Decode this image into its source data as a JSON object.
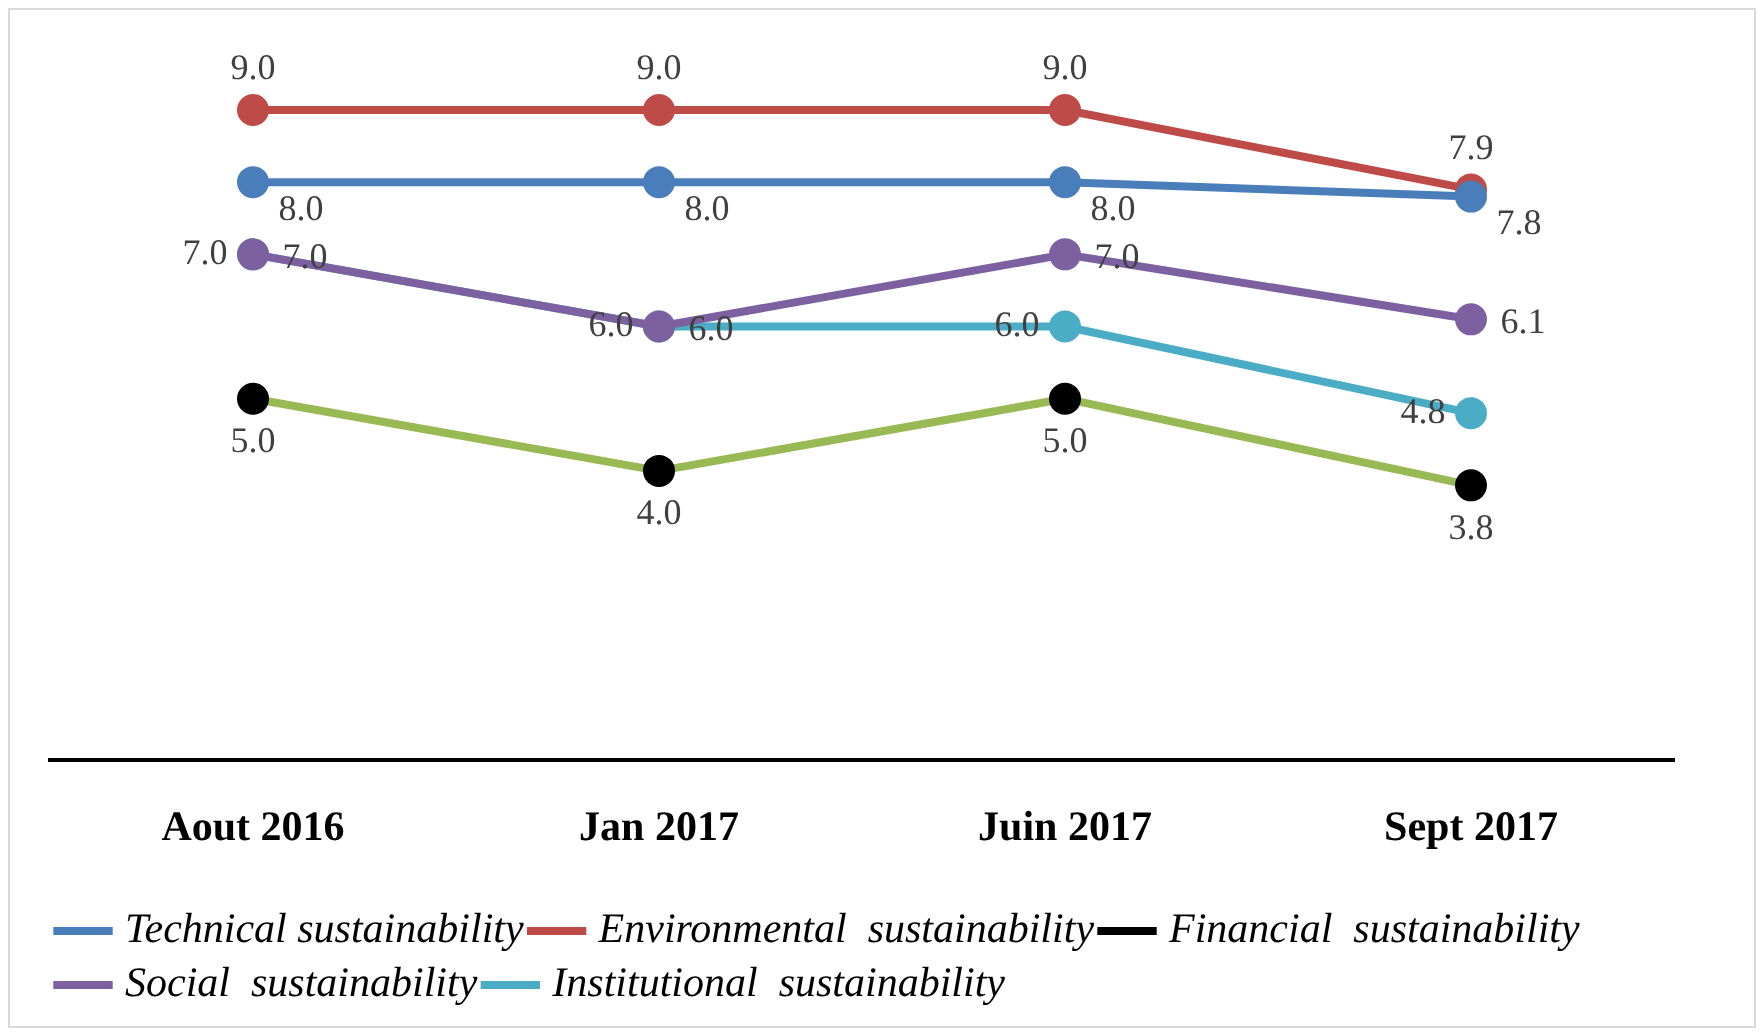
{
  "chart_data": {
    "type": "line",
    "categories": [
      "Aout 2016",
      "Jan 2017",
      "Juin 2017",
      "Sept 2017"
    ],
    "series": [
      {
        "name": "Technical sustainability",
        "color": "#4a7ebb",
        "values": [
          8.0,
          8.0,
          8.0,
          7.8
        ],
        "value_labels": [
          "8.0",
          "8.0",
          "8.0",
          "7.8"
        ]
      },
      {
        "name": "Environmental  sustainability",
        "color": "#be4b48",
        "values": [
          9.0,
          9.0,
          9.0,
          7.9
        ],
        "value_labels": [
          "9.0",
          "9.0",
          "9.0",
          "7.9"
        ]
      },
      {
        "name": "Financial  sustainability",
        "color": "#98b954",
        "values": [
          5.0,
          4.0,
          5.0,
          3.8
        ],
        "value_labels": [
          "5.0",
          "4.0",
          "5.0",
          "3.8"
        ]
      },
      {
        "name": "Social  sustainability",
        "color": "#7d60a0",
        "values": [
          7.0,
          6.0,
          7.0,
          6.1
        ],
        "value_labels": [
          "7.0",
          "6.0",
          "7.0",
          "6.1"
        ]
      },
      {
        "name": "Institutional  sustainability",
        "color": "#4bacc6",
        "values": [
          7.0,
          6.0,
          6.0,
          4.8
        ],
        "value_labels": [
          "7.0",
          "6.0",
          "6.0",
          "4.8"
        ]
      }
    ],
    "grid": false,
    "legend": "bottom",
    "marker": "circle",
    "line_style": "solid"
  }
}
